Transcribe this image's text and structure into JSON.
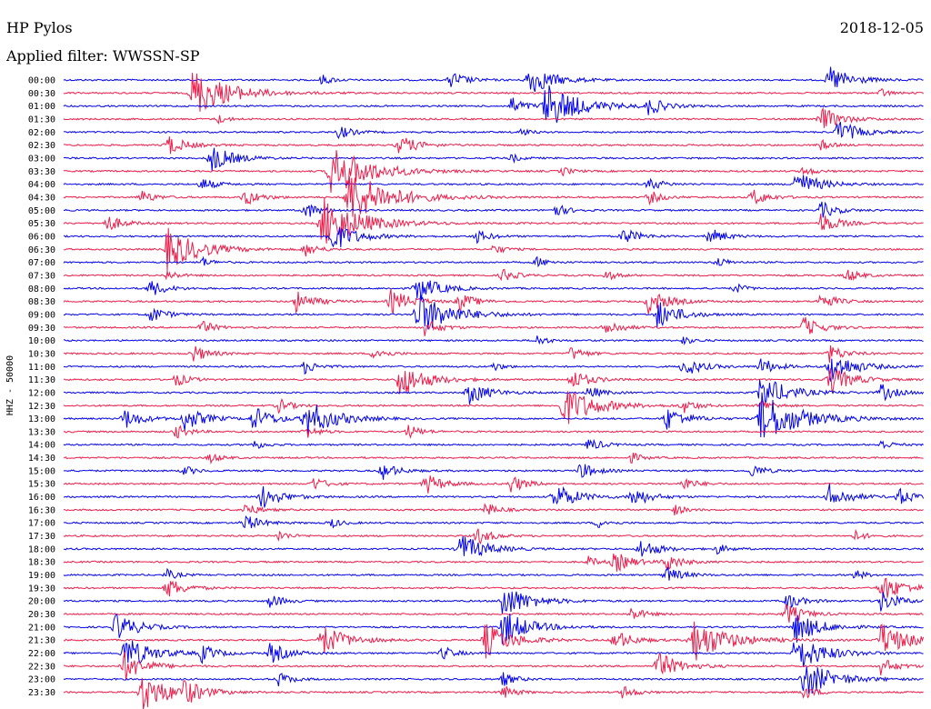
{
  "header": {
    "station": "HP Pylos",
    "filter_label": "Applied filter: WWSSN-SP",
    "date": "2018-12-05"
  },
  "channel_label": "HHZ - 50000",
  "colors": {
    "blue": "#0000ee",
    "red": "#ee1c4a"
  },
  "chart_data": {
    "type": "line",
    "title": "HP Pylos",
    "subtitle": "Applied filter: WWSSN-SP",
    "date": "2018-12-05",
    "ylabel": "HHZ - 50000",
    "row_interval_minutes": 30,
    "rows": [
      {
        "label": "00:00",
        "color": "blue",
        "events": [
          [
            0.3,
            6
          ],
          [
            0.45,
            10
          ],
          [
            0.54,
            18
          ],
          [
            0.89,
            16
          ]
        ]
      },
      {
        "label": "00:30",
        "color": "red",
        "events": [
          [
            0.15,
            28
          ],
          [
            0.95,
            5
          ]
        ]
      },
      {
        "label": "01:00",
        "color": "blue",
        "events": [
          [
            0.52,
            10
          ],
          [
            0.56,
            26
          ],
          [
            0.68,
            10
          ]
        ]
      },
      {
        "label": "01:30",
        "color": "red",
        "events": [
          [
            0.18,
            5
          ],
          [
            0.88,
            14
          ]
        ]
      },
      {
        "label": "02:00",
        "color": "blue",
        "events": [
          [
            0.32,
            8
          ],
          [
            0.53,
            5
          ],
          [
            0.9,
            14
          ]
        ]
      },
      {
        "label": "02:30",
        "color": "red",
        "events": [
          [
            0.12,
            12
          ],
          [
            0.39,
            12
          ],
          [
            0.88,
            6
          ]
        ]
      },
      {
        "label": "03:00",
        "color": "blue",
        "events": [
          [
            0.17,
            16
          ],
          [
            0.52,
            5
          ]
        ]
      },
      {
        "label": "03:30",
        "color": "red",
        "events": [
          [
            0.31,
            30
          ],
          [
            0.58,
            5
          ],
          [
            0.86,
            6
          ]
        ]
      },
      {
        "label": "04:00",
        "color": "blue",
        "events": [
          [
            0.16,
            8
          ],
          [
            0.68,
            8
          ],
          [
            0.85,
            16
          ]
        ]
      },
      {
        "label": "04:30",
        "color": "red",
        "events": [
          [
            0.09,
            8
          ],
          [
            0.21,
            10
          ],
          [
            0.33,
            32
          ],
          [
            0.68,
            8
          ],
          [
            0.8,
            10
          ]
        ]
      },
      {
        "label": "05:00",
        "color": "blue",
        "events": [
          [
            0.28,
            10
          ],
          [
            0.57,
            8
          ],
          [
            0.88,
            10
          ]
        ]
      },
      {
        "label": "05:30",
        "color": "red",
        "events": [
          [
            0.05,
            10
          ],
          [
            0.3,
            30
          ],
          [
            0.88,
            12
          ]
        ]
      },
      {
        "label": "06:00",
        "color": "blue",
        "events": [
          [
            0.31,
            18
          ],
          [
            0.48,
            8
          ],
          [
            0.65,
            10
          ],
          [
            0.75,
            10
          ]
        ]
      },
      {
        "label": "06:30",
        "color": "red",
        "events": [
          [
            0.12,
            24
          ],
          [
            0.28,
            8
          ],
          [
            0.5,
            6
          ]
        ]
      },
      {
        "label": "07:00",
        "color": "blue",
        "events": [
          [
            0.16,
            6
          ],
          [
            0.55,
            6
          ],
          [
            0.76,
            6
          ]
        ]
      },
      {
        "label": "07:30",
        "color": "red",
        "events": [
          [
            0.12,
            6
          ],
          [
            0.51,
            8
          ],
          [
            0.63,
            6
          ],
          [
            0.91,
            8
          ]
        ]
      },
      {
        "label": "08:00",
        "color": "blue",
        "events": [
          [
            0.1,
            10
          ],
          [
            0.41,
            16
          ],
          [
            0.78,
            6
          ]
        ]
      },
      {
        "label": "08:30",
        "color": "red",
        "events": [
          [
            0.27,
            12
          ],
          [
            0.38,
            14
          ],
          [
            0.46,
            10
          ],
          [
            0.68,
            14
          ],
          [
            0.88,
            10
          ]
        ]
      },
      {
        "label": "09:00",
        "color": "blue",
        "events": [
          [
            0.1,
            10
          ],
          [
            0.41,
            26
          ],
          [
            0.69,
            16
          ]
        ]
      },
      {
        "label": "09:30",
        "color": "red",
        "events": [
          [
            0.16,
            8
          ],
          [
            0.42,
            10
          ],
          [
            0.63,
            10
          ],
          [
            0.86,
            12
          ]
        ]
      },
      {
        "label": "10:00",
        "color": "blue",
        "events": [
          [
            0.55,
            6
          ],
          [
            0.72,
            5
          ]
        ]
      },
      {
        "label": "10:30",
        "color": "red",
        "events": [
          [
            0.15,
            10
          ],
          [
            0.36,
            8
          ],
          [
            0.59,
            8
          ],
          [
            0.89,
            10
          ]
        ]
      },
      {
        "label": "11:00",
        "color": "blue",
        "events": [
          [
            0.28,
            8
          ],
          [
            0.5,
            5
          ],
          [
            0.72,
            12
          ],
          [
            0.81,
            10
          ],
          [
            0.89,
            18
          ]
        ]
      },
      {
        "label": "11:30",
        "color": "red",
        "events": [
          [
            0.13,
            8
          ],
          [
            0.39,
            20
          ],
          [
            0.59,
            12
          ],
          [
            0.89,
            16
          ]
        ]
      },
      {
        "label": "12:00",
        "color": "blue",
        "events": [
          [
            0.47,
            14
          ],
          [
            0.61,
            8
          ],
          [
            0.81,
            20
          ],
          [
            0.95,
            10
          ]
        ]
      },
      {
        "label": "12:30",
        "color": "red",
        "events": [
          [
            0.25,
            8
          ],
          [
            0.58,
            24
          ],
          [
            0.72,
            8
          ],
          [
            0.81,
            8
          ]
        ]
      },
      {
        "label": "13:00",
        "color": "blue",
        "events": [
          [
            0.07,
            12
          ],
          [
            0.14,
            14
          ],
          [
            0.22,
            14
          ],
          [
            0.28,
            22
          ],
          [
            0.7,
            14
          ],
          [
            0.81,
            30
          ]
        ]
      },
      {
        "label": "13:30",
        "color": "red",
        "events": [
          [
            0.13,
            8
          ],
          [
            0.28,
            8
          ],
          [
            0.4,
            8
          ]
        ]
      },
      {
        "label": "14:00",
        "color": "blue",
        "events": [
          [
            0.22,
            6
          ],
          [
            0.61,
            8
          ],
          [
            0.95,
            6
          ]
        ]
      },
      {
        "label": "14:30",
        "color": "red",
        "events": [
          [
            0.17,
            6
          ],
          [
            0.66,
            6
          ]
        ]
      },
      {
        "label": "15:00",
        "color": "blue",
        "events": [
          [
            0.14,
            6
          ],
          [
            0.37,
            10
          ],
          [
            0.6,
            10
          ],
          [
            0.8,
            8
          ]
        ]
      },
      {
        "label": "15:30",
        "color": "red",
        "events": [
          [
            0.29,
            8
          ],
          [
            0.42,
            12
          ],
          [
            0.52,
            10
          ],
          [
            0.72,
            8
          ]
        ]
      },
      {
        "label": "16:00",
        "color": "blue",
        "events": [
          [
            0.23,
            14
          ],
          [
            0.57,
            16
          ],
          [
            0.66,
            12
          ],
          [
            0.89,
            14
          ],
          [
            0.97,
            10
          ]
        ]
      },
      {
        "label": "16:30",
        "color": "red",
        "events": [
          [
            0.21,
            8
          ],
          [
            0.49,
            8
          ],
          [
            0.71,
            6
          ]
        ]
      },
      {
        "label": "17:00",
        "color": "blue",
        "events": [
          [
            0.21,
            10
          ],
          [
            0.31,
            6
          ],
          [
            0.62,
            6
          ]
        ]
      },
      {
        "label": "17:30",
        "color": "red",
        "events": [
          [
            0.25,
            6
          ],
          [
            0.48,
            10
          ],
          [
            0.92,
            6
          ]
        ]
      },
      {
        "label": "18:00",
        "color": "blue",
        "events": [
          [
            0.46,
            18
          ],
          [
            0.67,
            12
          ],
          [
            0.76,
            6
          ]
        ]
      },
      {
        "label": "18:30",
        "color": "red",
        "events": [
          [
            0.61,
            6
          ],
          [
            0.64,
            12
          ],
          [
            0.7,
            10
          ]
        ]
      },
      {
        "label": "19:00",
        "color": "blue",
        "events": [
          [
            0.12,
            6
          ],
          [
            0.7,
            10
          ],
          [
            0.92,
            6
          ]
        ]
      },
      {
        "label": "19:30",
        "color": "red",
        "events": [
          [
            0.12,
            12
          ],
          [
            0.95,
            16
          ]
        ]
      },
      {
        "label": "20:00",
        "color": "blue",
        "events": [
          [
            0.24,
            8
          ],
          [
            0.51,
            20
          ],
          [
            0.84,
            10
          ],
          [
            0.95,
            12
          ]
        ]
      },
      {
        "label": "20:30",
        "color": "red",
        "events": [
          [
            0.66,
            8
          ],
          [
            0.84,
            12
          ]
        ]
      },
      {
        "label": "21:00",
        "color": "blue",
        "events": [
          [
            0.06,
            16
          ],
          [
            0.51,
            20
          ],
          [
            0.85,
            18
          ]
        ]
      },
      {
        "label": "21:30",
        "color": "red",
        "events": [
          [
            0.3,
            18
          ],
          [
            0.49,
            20
          ],
          [
            0.64,
            12
          ],
          [
            0.73,
            26
          ],
          [
            0.95,
            20
          ]
        ]
      },
      {
        "label": "22:00",
        "color": "blue",
        "events": [
          [
            0.07,
            20
          ],
          [
            0.16,
            10
          ],
          [
            0.24,
            12
          ],
          [
            0.44,
            8
          ],
          [
            0.85,
            22
          ]
        ]
      },
      {
        "label": "22:30",
        "color": "red",
        "events": [
          [
            0.07,
            16
          ],
          [
            0.69,
            16
          ],
          [
            0.95,
            10
          ]
        ]
      },
      {
        "label": "23:00",
        "color": "blue",
        "events": [
          [
            0.25,
            8
          ],
          [
            0.51,
            8
          ],
          [
            0.86,
            22
          ]
        ]
      },
      {
        "label": "23:30",
        "color": "red",
        "events": [
          [
            0.09,
            22
          ],
          [
            0.14,
            12
          ],
          [
            0.51,
            8
          ],
          [
            0.65,
            8
          ],
          [
            0.86,
            8
          ]
        ]
      }
    ]
  }
}
